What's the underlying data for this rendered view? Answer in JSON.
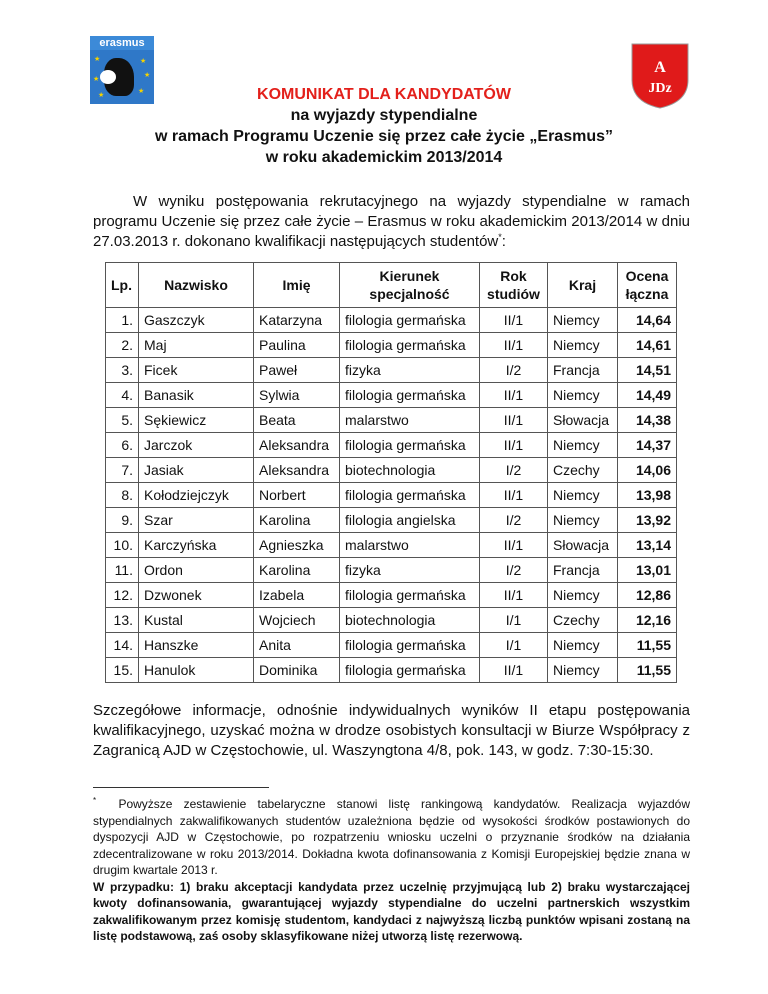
{
  "logos": {
    "erasmus_text": "erasmus",
    "ajd_text": "AJD"
  },
  "heading": {
    "title": "KOMUNIKAT DLA KANDYDATÓW",
    "line1": "na wyjazdy stypendialne",
    "line2": "w ramach Programu Uczenie się przez całe życie „Erasmus”",
    "line3": "w roku akademickim 2013/2014"
  },
  "intro": "W wyniku postępowania rekrutacyjnego na wyjazdy stypendialne w ramach programu Uczenie się przez całe życie – Erasmus w roku akademickim 2013/2014 w dniu 27.03.2013 r. dokonano kwalifikacji następujących studentów",
  "intro_mark": "*",
  "intro_end": ":",
  "table": {
    "headers": [
      "Lp.",
      "Nazwisko",
      "Imię",
      "Kierunek specjalność",
      "Rok studiów",
      "Kraj",
      "Ocena łączna"
    ],
    "rows": [
      [
        "1.",
        "Gaszczyk",
        "Katarzyna",
        "filologia germańska",
        "II/1",
        "Niemcy",
        "14,64"
      ],
      [
        "2.",
        "Maj",
        "Paulina",
        "filologia germańska",
        "II/1",
        "Niemcy",
        "14,61"
      ],
      [
        "3.",
        "Ficek",
        "Paweł",
        "fizyka",
        "I/2",
        "Francja",
        "14,51"
      ],
      [
        "4.",
        "Banasik",
        "Sylwia",
        "filologia germańska",
        "II/1",
        "Niemcy",
        "14,49"
      ],
      [
        "5.",
        "Sękiewicz",
        "Beata",
        "malarstwo",
        "II/1",
        "Słowacja",
        "14,38"
      ],
      [
        "6.",
        "Jarczok",
        "Aleksandra",
        "filologia germańska",
        "II/1",
        "Niemcy",
        "14,37"
      ],
      [
        "7.",
        "Jasiak",
        "Aleksandra",
        "biotechnologia",
        "I/2",
        "Czechy",
        "14,06"
      ],
      [
        "8.",
        "Kołodziejczyk",
        "Norbert",
        "filologia germańska",
        "II/1",
        "Niemcy",
        "13,98"
      ],
      [
        "9.",
        "Szar",
        "Karolina",
        "filologia angielska",
        "I/2",
        "Niemcy",
        "13,92"
      ],
      [
        "10.",
        "Karczyńska",
        "Agnieszka",
        "malarstwo",
        "II/1",
        "Słowacja",
        "13,14"
      ],
      [
        "11.",
        "Ordon",
        "Karolina",
        "fizyka",
        "I/2",
        "Francja",
        "13,01"
      ],
      [
        "12.",
        "Dzwonek",
        "Izabela",
        "filologia germańska",
        "II/1",
        "Niemcy",
        "12,86"
      ],
      [
        "13.",
        "Kustal",
        "Wojciech",
        "biotechnologia",
        "I/1",
        "Czechy",
        "12,16"
      ],
      [
        "14.",
        "Hanszke",
        "Anita",
        "filologia germańska",
        "I/1",
        "Niemcy",
        "11,55"
      ],
      [
        "15.",
        "Hanulok",
        "Dominika",
        "filologia germańska",
        "II/1",
        "Niemcy",
        "11,55"
      ]
    ]
  },
  "details": "Szczegółowe informacje, odnośnie indywidualnych wyników II etapu postępowania kwalifikacyjnego, uzyskać można w drodze osobistych konsultacji w Biurze Współpracy z Zagranicą AJD w Częstochowie, ul. Waszyngtona 4/8, pok. 143, w godz. 7:30-15:30.",
  "footnote": {
    "mark": "*",
    "text": "Powyższe zestawienie tabelaryczne stanowi listę rankingową kandydatów. Realizacja wyjazdów stypendialnych zakwalifikowanych studentów uzależniona będzie od wysokości środków postawionych do dyspozycji AJD w Częstochowie, po rozpatrzeniu wniosku uczelni o przyznanie środków na działania zdecentralizowane w roku 2013/2014. Dokładna kwota dofinansowania z Komisji Europejskiej będzie znana w drugim kwartale 2013 r.",
    "bold": "W przypadku: 1) braku akceptacji kandydata przez uczelnię przyjmującą lub 2) braku wystarczającej kwoty dofinansowania, gwarantującej wyjazdy stypendialne do uczelni partnerskich wszystkim zakwalifikowanym przez komisję studentom, kandydaci z najwyższą liczbą punktów wpisani zostaną na listę podstawową, zaś osoby sklasyfikowane niżej utworzą listę rezerwową."
  },
  "colors": {
    "title_red": "#e3201b",
    "erasmus_blue": "#2f78c8",
    "ajd_red": "#e01a1a"
  }
}
